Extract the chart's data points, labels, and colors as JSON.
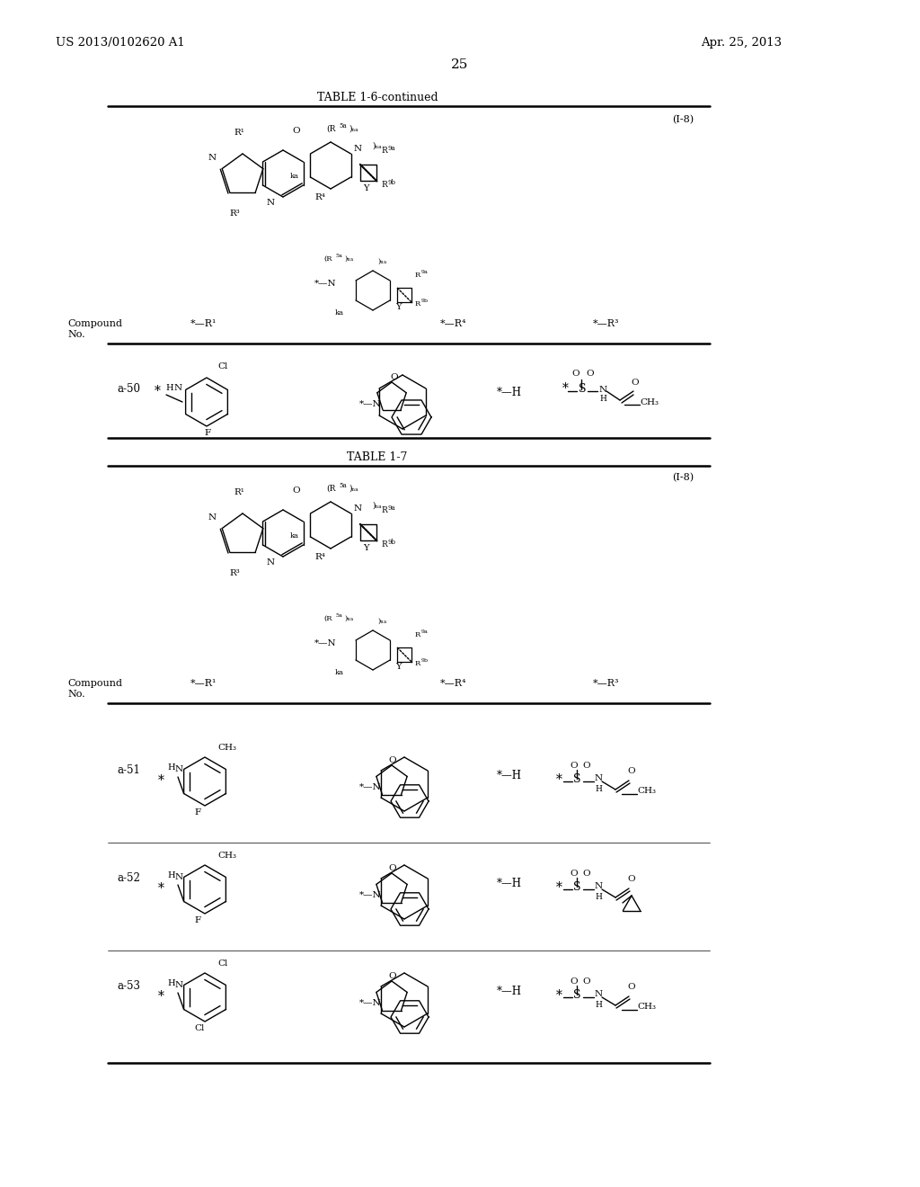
{
  "page_number": "25",
  "patent_left": "US 2013/0102620 A1",
  "patent_right": "Apr. 25, 2013",
  "table1_title": "TABLE 1-6-continued",
  "table2_title": "TABLE 1-7",
  "label_i8": "(I-8)",
  "bg_color": "#ffffff"
}
